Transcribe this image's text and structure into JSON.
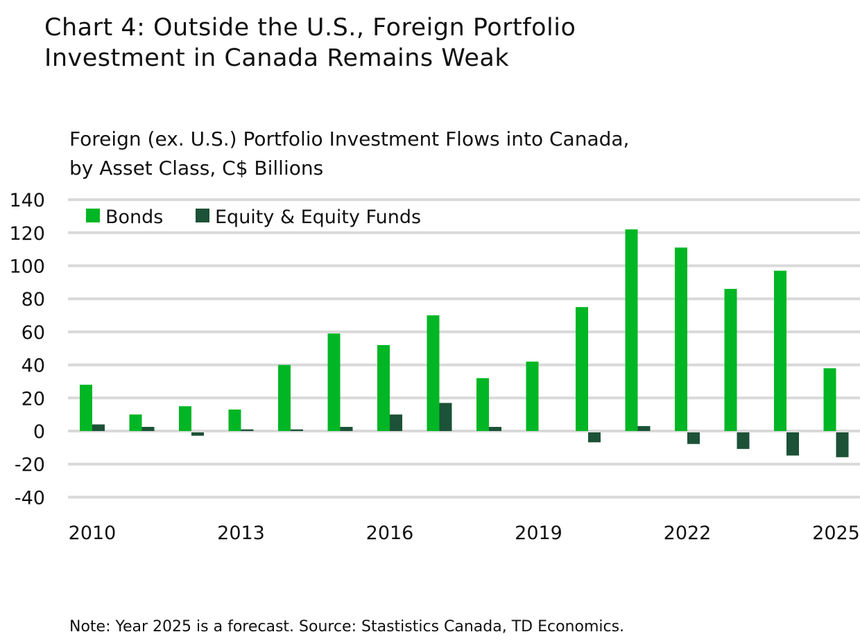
{
  "title_line1": "Chart 4: Outside the U.S., Foreign Portfolio",
  "title_line2": "Investment in Canada Remains Weak",
  "note": "Note: Year 2025 is a forecast. Source: Stastistics Canada, TD Economics.",
  "chart_data": {
    "type": "bar",
    "title": "Foreign (ex. U.S.) Portfolio Investment Flows into Canada, by Asset Class, C$ Billions",
    "subtitle_line1": "Foreign (ex. U.S.) Portfolio Investment Flows into Canada,",
    "subtitle_line2": "by Asset Class, C$ Billions",
    "categories": [
      "2010",
      "2011",
      "2012",
      "2013",
      "2014",
      "2015",
      "2016",
      "2017",
      "2018",
      "2019",
      "2020",
      "2021",
      "2022",
      "2023",
      "2024",
      "2025"
    ],
    "x_tick_labels": [
      "2010",
      "2013",
      "2016",
      "2019",
      "2022",
      "2025"
    ],
    "y_ticks": [
      140,
      120,
      100,
      80,
      60,
      40,
      20,
      0,
      -20,
      -40
    ],
    "ylim": [
      -40,
      140
    ],
    "grid": true,
    "legend_position": "top-left",
    "series": [
      {
        "name": "Bonds",
        "color": "#00b624",
        "values": [
          28,
          10,
          15,
          13,
          40,
          59,
          52,
          70,
          32,
          42,
          75,
          122,
          111,
          86,
          97,
          38
        ]
      },
      {
        "name": "Equity & Equity Funds",
        "color": "#1c5237",
        "values": [
          4,
          2.5,
          -2,
          1,
          1,
          2.5,
          10,
          17,
          2.5,
          0,
          -6,
          3,
          -7,
          -10,
          -14,
          -15
        ]
      }
    ]
  }
}
